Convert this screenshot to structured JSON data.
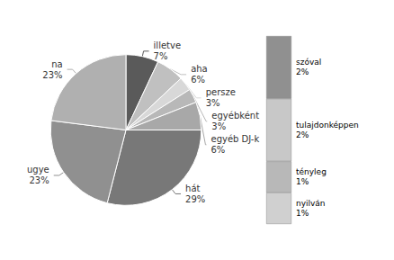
{
  "chart_data": [
    {
      "type": "pie",
      "labels": [
        "illetve",
        "aha",
        "persze",
        "egyébként",
        "egyéb DJ-k",
        "hát",
        "ugye",
        "na"
      ],
      "values": [
        7,
        6,
        3,
        3,
        6,
        29,
        23,
        23
      ],
      "value_labels": [
        "7%",
        "6%",
        "3%",
        "3%",
        "6%",
        "29%",
        "23%",
        "23%"
      ],
      "colors": [
        "#5a5a5a",
        "#c0c0c0",
        "#d8d8d8",
        "#b8b8b8",
        "#a8a8a8",
        "#787878",
        "#909090",
        "#b0b0b0"
      ],
      "data_labels": true
    },
    {
      "type": "bar",
      "stacked": true,
      "categories": [
        null
      ],
      "series": [
        {
          "name": "szóval",
          "color": "#909090",
          "values": [
            2
          ],
          "value_labels": [
            "2%"
          ]
        },
        {
          "name": "tulajdonképpen",
          "color": "#c8c8c8",
          "values": [
            2
          ],
          "value_labels": [
            "2%"
          ]
        },
        {
          "name": "tényleg",
          "color": "#b8b8b8",
          "values": [
            1
          ],
          "value_labels": [
            "1%"
          ]
        },
        {
          "name": "nyilván",
          "color": "#d0d0d0",
          "values": [
            1
          ],
          "value_labels": [
            "1%"
          ]
        }
      ],
      "ylim": [
        0,
        6
      ],
      "tick_labels": false,
      "data_labels": true
    }
  ]
}
